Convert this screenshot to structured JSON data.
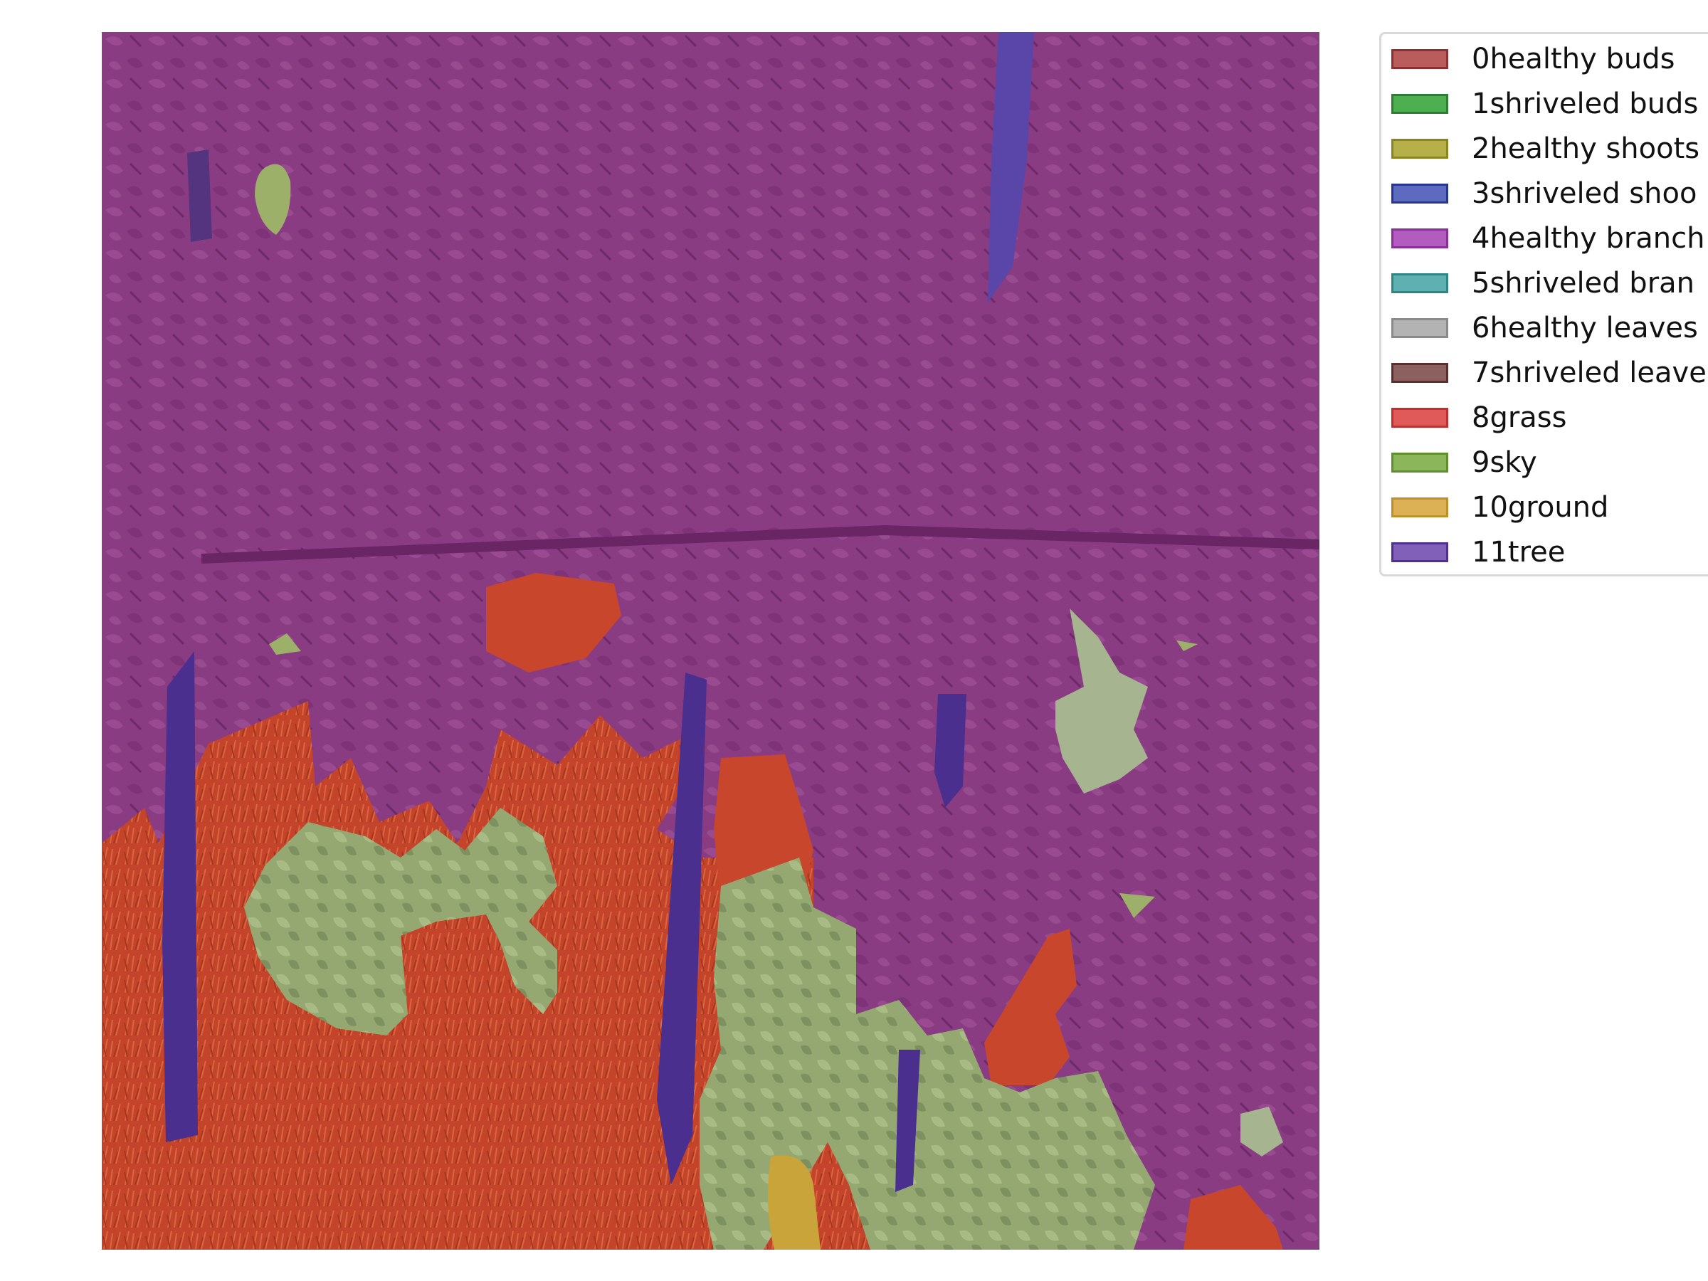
{
  "legend": {
    "items": [
      {
        "label": "0healthy buds",
        "color": "#b85c5c",
        "border": "#8f2f2f"
      },
      {
        "label": "1shriveled buds",
        "color": "#4caf50",
        "border": "#2e7d32"
      },
      {
        "label": "2healthy shoots",
        "color": "#b5b04a",
        "border": "#8a8521"
      },
      {
        "label": "3shriveled shoo",
        "color": "#5c6bc0",
        "border": "#283593"
      },
      {
        "label": "4healthy branch",
        "color": "#b35cc0",
        "border": "#8a2f9a"
      },
      {
        "label": "5shriveled bran",
        "color": "#5fb0b0",
        "border": "#2e8585"
      },
      {
        "label": "6healthy leaves",
        "color": "#b3b3b3",
        "border": "#8a8a8a"
      },
      {
        "label": "7shriveled leave",
        "color": "#8d6060",
        "border": "#5c2f2f"
      },
      {
        "label": "8grass",
        "color": "#e05a5a",
        "border": "#c02f2f"
      },
      {
        "label": "9sky",
        "color": "#8bb65a",
        "border": "#5f8f2f"
      },
      {
        "label": "10ground",
        "color": "#dcb055",
        "border": "#c08f2a"
      },
      {
        "label": "11tree",
        "color": "#8060b8",
        "border": "#4f2f8f"
      }
    ]
  },
  "image": {
    "description_colors": {
      "tree_overlay": "#8e3f86",
      "grass_overlay": "#c8462c",
      "leaves_overlay": "#9aab74",
      "pole_overlay": "#4b2f8f",
      "ground_overlay": "#c9a43a"
    }
  }
}
